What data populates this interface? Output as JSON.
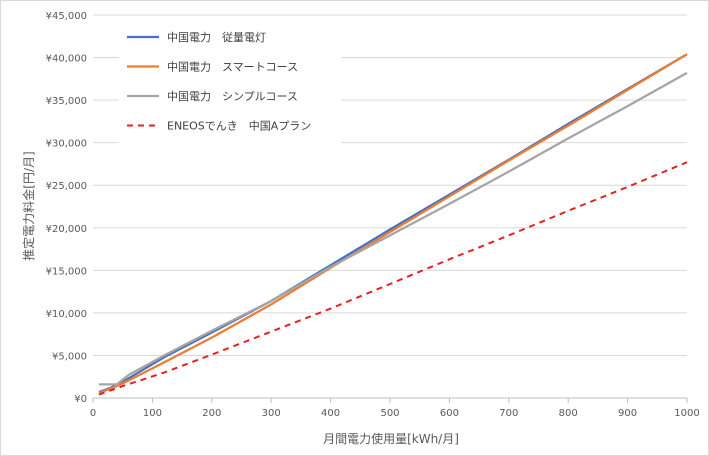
{
  "chart_data": {
    "type": "line",
    "title": "",
    "xlabel": "月間電力使用量[kWh/月]",
    "ylabel": "推定電力料金[円/月]",
    "xlim": [
      0,
      1000
    ],
    "ylim": [
      0,
      45000
    ],
    "xticks": [
      0,
      100,
      200,
      300,
      400,
      500,
      600,
      700,
      800,
      900,
      1000
    ],
    "yticks": [
      0,
      5000,
      10000,
      15000,
      20000,
      25000,
      30000,
      35000,
      40000,
      45000
    ],
    "x_tick_labels": [
      "0",
      "100",
      "200",
      "300",
      "400",
      "500",
      "600",
      "700",
      "800",
      "900",
      "1000"
    ],
    "y_tick_labels": [
      "¥0",
      "¥5,000",
      "¥10,000",
      "¥15,000",
      "¥20,000",
      "¥25,000",
      "¥30,000",
      "¥35,000",
      "¥40,000",
      "¥45,000"
    ],
    "grid": "horizontal",
    "legend_position": "top-left",
    "series": [
      {
        "name": "中国電力 従量電灯",
        "color": "#4472c4",
        "dash": "solid",
        "x": [
          10,
          30,
          50,
          120,
          200,
          300,
          400,
          500,
          600,
          700,
          800,
          900,
          1000
        ],
        "y": [
          700,
          1200,
          1900,
          4800,
          7700,
          11400,
          15600,
          19800,
          23900,
          28000,
          32200,
          36300,
          40400
        ]
      },
      {
        "name": "中国電力 スマートコース",
        "color": "#ed7d31",
        "dash": "solid",
        "x": [
          10,
          30,
          50,
          120,
          200,
          300,
          400,
          500,
          600,
          700,
          800,
          900,
          1000
        ],
        "y": [
          600,
          1100,
          1700,
          4200,
          7100,
          11000,
          15300,
          19500,
          23700,
          27900,
          32000,
          36200,
          40400
        ]
      },
      {
        "name": "中国電力 シンプルコース",
        "color": "#a5a5a5",
        "dash": "solid",
        "x": [
          10,
          40,
          60,
          120,
          200,
          300,
          400,
          500,
          600,
          700,
          800,
          900,
          1000
        ],
        "y": [
          1600,
          1600,
          2700,
          5000,
          7900,
          11400,
          15400,
          19100,
          22800,
          26600,
          30500,
          34300,
          38200
        ]
      },
      {
        "name": "ENEOSでんき 中国Aプラン",
        "color": "#e32222",
        "dash": "dashed",
        "x": [
          10,
          50,
          120,
          200,
          300,
          400,
          500,
          600,
          700,
          800,
          900,
          1000
        ],
        "y": [
          400,
          1400,
          3000,
          5100,
          7800,
          10500,
          13400,
          16300,
          19100,
          22000,
          24800,
          27700
        ]
      }
    ]
  }
}
